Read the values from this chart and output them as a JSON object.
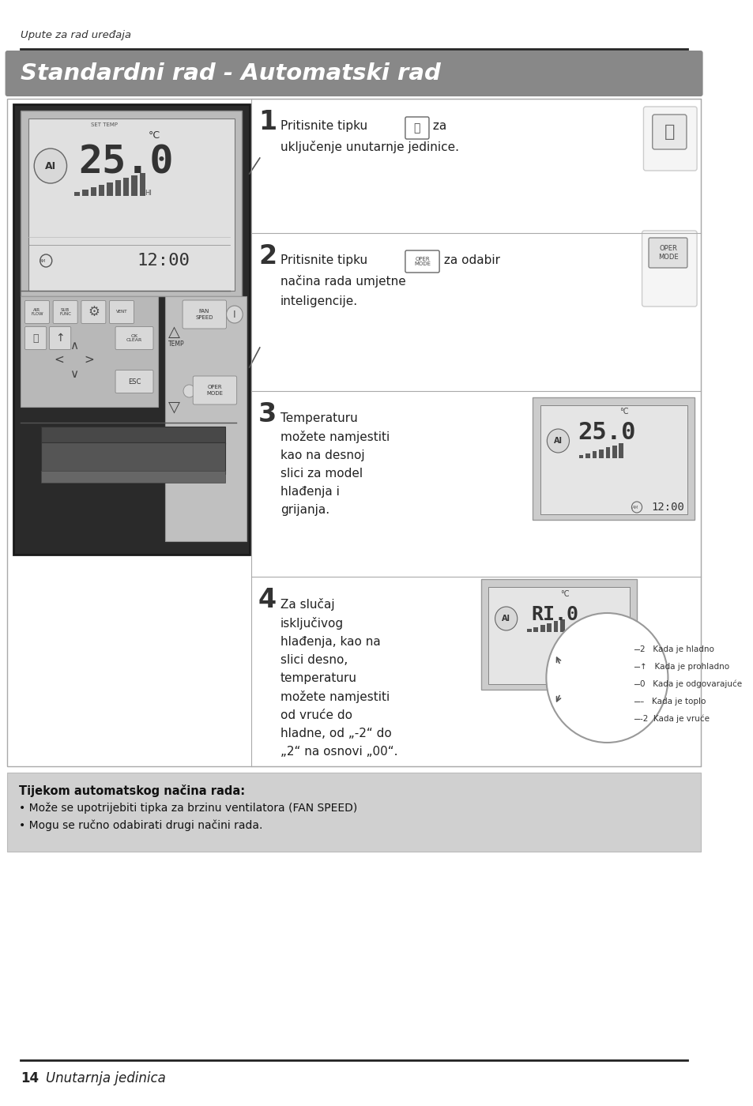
{
  "page_bg": "#ffffff",
  "top_label": "Upute za rad uređaja",
  "title": "Standardni rad - Automatski rad",
  "footer_number": "14",
  "footer_text": "Unutarnja jedinica",
  "note_title": "Tijekom automatskog načina rada:",
  "note_lines": [
    "• Može se upotrijebiti tipka za brzinu ventilatora (FAN SPEED)",
    "• Mogu se ručno odabirati drugi načini rada."
  ],
  "step1_text1": "Pritisnite tipku",
  "step1_text2": " za",
  "step1_text3": "uključenje unutarnje jedinice.",
  "step2_text1": "Pritisnite tipku",
  "step2_text2": " za odabir",
  "step2_text3": "načina rada umjetne",
  "step2_text4": "inteligencije.",
  "step3_text": "Temperaturu\nmožete namjestiti\nkao na desnoj\nslici za model\nhlađenja i\ngrijanja.",
  "step4_text": "Za slučaj\nisključivog\nhlađenja, kao na\nslici desno,\ntemperaturu\nmožete namjestiti\nod vruće do\nhladne, od „-2“ do\n„2“ na osnovi „00“.",
  "dial_labels": [
    "2   Kada je hladno",
    "↑   Kada je prohladno",
    "0   Kada je odgovarajuće",
    "–   Kada je toplo",
    "-2  Kada je vruće"
  ]
}
